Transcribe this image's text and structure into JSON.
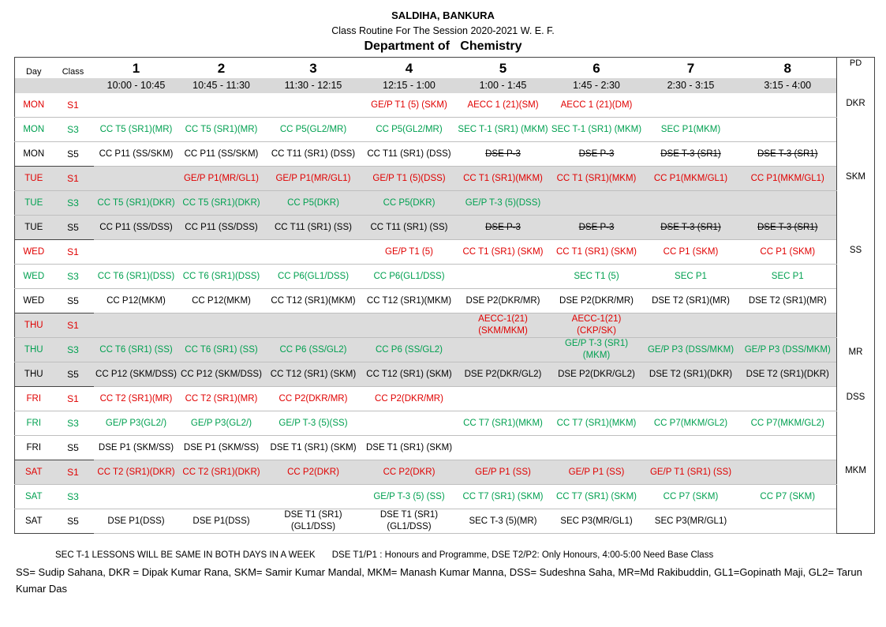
{
  "header": {
    "institution": "SALDIHA, BANKURA",
    "subtitle": "Class Routine For The Session 2020-2021 W. E. F.",
    "department": "Department of   Chemistry"
  },
  "table": {
    "day_label": "Day",
    "class_label": "Class",
    "pd_label": "PD",
    "periods": [
      "1",
      "2",
      "3",
      "4",
      "5",
      "6",
      "7",
      "8"
    ],
    "times": [
      "10:00 - 10:45",
      "10:45 - 11:30",
      "11:30 - 12:15",
      "12:15 - 1:00",
      "1:00 - 1:45",
      "1:45 - 2:30",
      "2:30 - 3:15",
      "3:15 - 4:00"
    ],
    "rows": [
      {
        "day": "MON",
        "cls": "S1",
        "color": "r",
        "shade": false,
        "cells": [
          "",
          "",
          "",
          "GE/P T1 (5)  (SKM)",
          "AECC 1 (21)(SM)",
          "AECC 1 (21)(DM)",
          "",
          ""
        ]
      },
      {
        "day": "MON",
        "cls": "S3",
        "color": "g",
        "shade": false,
        "cells": [
          "CC T5 (SR1)(MR)",
          "CC T5 (SR1)(MR)",
          "CC P5(GL2/MR)",
          "CC P5(GL2/MR)",
          "SEC T-1 (SR1) (MKM)",
          "SEC T-1 (SR1) (MKM)",
          "SEC P1(MKM)",
          ""
        ]
      },
      {
        "day": "MON",
        "cls": "S5",
        "color": "k",
        "shade": false,
        "cells": [
          "CC P11 (SS/SKM)",
          "CC P11 (SS/SKM)",
          "CC T11 (SR1) (DSS)",
          "CC T11 (SR1) (DSS)",
          "DSE P-3",
          "DSE P-3",
          "DSE T-3  (SR1)",
          "DSE T-3 (SR1)"
        ],
        "strike": [
          4,
          5,
          6,
          7
        ]
      },
      {
        "day": "TUE",
        "cls": "S1",
        "color": "r",
        "shade": true,
        "cells": [
          "",
          "GE/P P1(MR/GL1)",
          "GE/P P1(MR/GL1)",
          "GE/P T1 (5)(DSS)",
          "CC T1 (SR1)(MKM)",
          "CC T1 (SR1)(MKM)",
          "CC P1(MKM/GL1)",
          "CC P1(MKM/GL1)"
        ]
      },
      {
        "day": "TUE",
        "cls": "S3",
        "color": "g",
        "shade": true,
        "cells": [
          "CC T5 (SR1)(DKR)",
          "CC T5 (SR1)(DKR)",
          "CC P5(DKR)",
          "CC P5(DKR)",
          "GE/P T-3 (5)(DSS)",
          "",
          "",
          ""
        ]
      },
      {
        "day": "TUE",
        "cls": "S5",
        "color": "k",
        "shade": true,
        "cells": [
          "CC P11 (SS/DSS)",
          "CC P11 (SS/DSS)",
          "CC T11 (SR1) (SS)",
          "CC T11 (SR1) (SS)",
          "DSE P-3",
          "DSE P-3",
          "DSE T-3  (SR1)",
          "DSE T-3 (SR1)"
        ],
        "strike": [
          4,
          5,
          6,
          7
        ]
      },
      {
        "day": "WED",
        "cls": "S1",
        "color": "r",
        "shade": false,
        "cells": [
          "",
          "",
          "",
          "GE/P T1 (5)",
          "CC T1 (SR1) (SKM)",
          "CC T1 (SR1) (SKM)",
          "CC P1 (SKM)",
          "CC P1 (SKM)"
        ]
      },
      {
        "day": "WED",
        "cls": "S3",
        "color": "g",
        "shade": false,
        "cells": [
          "CC T6 (SR1)(DSS)",
          "CC T6 (SR1)(DSS)",
          "CC P6(GL1/DSS)",
          "CC P6(GL1/DSS)",
          "",
          "SEC T1 (5)",
          "SEC P1",
          "SEC P1"
        ]
      },
      {
        "day": "WED",
        "cls": "S5",
        "color": "k",
        "shade": false,
        "cells": [
          "CC P12(MKM)",
          "CC P12(MKM)",
          "CC T12 (SR1)(MKM)",
          "CC T12 (SR1)(MKM)",
          "DSE P2(DKR/MR)",
          "DSE P2(DKR/MR)",
          "DSE T2 (SR1)(MR)",
          "DSE T2 (SR1)(MR)"
        ]
      },
      {
        "day": "THU",
        "cls": "S1",
        "color": "r",
        "shade": true,
        "cells": [
          "",
          "",
          "",
          "",
          "AECC-1(21) (SKM/MKM)",
          "AECC-1(21) (CKP/SK)",
          "",
          ""
        ]
      },
      {
        "day": "THU",
        "cls": "S3",
        "color": "g",
        "shade": true,
        "cells": [
          "CC T6 (SR1) (SS)",
          "CC T6 (SR1) (SS)",
          "CC P6 (SS/GL2)",
          "CC P6 (SS/GL2)",
          "",
          "GE/P T-3 (SR1) (MKM)",
          "GE/P P3 (DSS/MKM)",
          "GE/P P3 (DSS/MKM)"
        ]
      },
      {
        "day": "THU",
        "cls": "S5",
        "color": "k",
        "shade": true,
        "cells": [
          "CC P12 (SKM/DSS)",
          "CC P12 (SKM/DSS)",
          "CC T12 (SR1) (SKM)",
          "CC T12 (SR1) (SKM)",
          "DSE P2(DKR/GL2)",
          "DSE P2(DKR/GL2)",
          "DSE T2 (SR1)(DKR)",
          "DSE T2 (SR1)(DKR)"
        ]
      },
      {
        "day": "FRI",
        "cls": "S1",
        "color": "r",
        "shade": false,
        "cells": [
          "CC T2 (SR1)(MR)",
          "CC T2 (SR1)(MR)",
          "CC P2(DKR/MR)",
          "CC P2(DKR/MR)",
          "",
          "",
          "",
          ""
        ]
      },
      {
        "day": "FRI",
        "cls": "S3",
        "color": "g",
        "shade": false,
        "cells": [
          "GE/P P3(GL2/)",
          "GE/P P3(GL2/)",
          "GE/P T-3 (5)(SS)",
          "",
          "CC T7 (SR1)(MKM)",
          "CC T7 (SR1)(MKM)",
          "CC P7(MKM/GL2)",
          "CC P7(MKM/GL2)"
        ]
      },
      {
        "day": "FRI",
        "cls": "S5",
        "color": "k",
        "shade": false,
        "cells": [
          "DSE P1 (SKM/SS)",
          "DSE P1 (SKM/SS)",
          "DSE T1 (SR1) (SKM)",
          "DSE T1 (SR1) (SKM)",
          "",
          "",
          "",
          ""
        ]
      },
      {
        "day": "SAT",
        "cls": "S1",
        "color": "r",
        "shade": true,
        "cells": [
          "CC T2 (SR1)(DKR)",
          "CC T2 (SR1)(DKR)",
          "CC P2(DKR)",
          "CC P2(DKR)",
          "GE/P P1 (SS)",
          "GE/P P1 (SS)",
          "GE/P T1 (SR1) (SS)",
          ""
        ]
      },
      {
        "day": "SAT",
        "cls": "S3",
        "color": "g",
        "shade": false,
        "cells": [
          "",
          "",
          "",
          "GE/P T-3 (5) (SS)",
          "CC T7 (SR1) (SKM)",
          "CC T7 (SR1) (SKM)",
          "CC P7 (SKM)",
          "CC P7 (SKM)"
        ]
      },
      {
        "day": "SAT",
        "cls": "S5",
        "color": "k",
        "shade": false,
        "cells": [
          "DSE P1(DSS)",
          "DSE P1(DSS)",
          "DSE T1 (SR1)(GL1/DSS)",
          "DSE T1 (SR1)(GL1/DSS)",
          "SEC T-3 (5)(MR)",
          "SEC P3(MR/GL1)",
          "SEC P3(MR/GL1)",
          ""
        ]
      }
    ],
    "pd": [
      "DKR",
      "SKM",
      "SS",
      "MR",
      "DSS",
      "MKM"
    ]
  },
  "footer": {
    "note1": "SEC T-1 LESSONS WILL BE SAME IN BOTH DAYS IN A WEEK",
    "note2": "DSE T1/P1 : Honours and Programme, DSE T2/P2: Only Honours, 4:00-5:00 Need Base Class",
    "legend": "SS= Sudip Sahana, DKR = Dipak Kumar Rana, SKM= Samir Kumar Mandal, MKM= Manash Kumar Manna, DSS= Sudeshna  Saha, MR=Md Rakibuddin, GL1=Gopinath Maji, GL2= Tarun Kumar Das"
  },
  "colors": {
    "red": "#e00000",
    "green": "#00a050",
    "shade": "#dcdcdc"
  }
}
